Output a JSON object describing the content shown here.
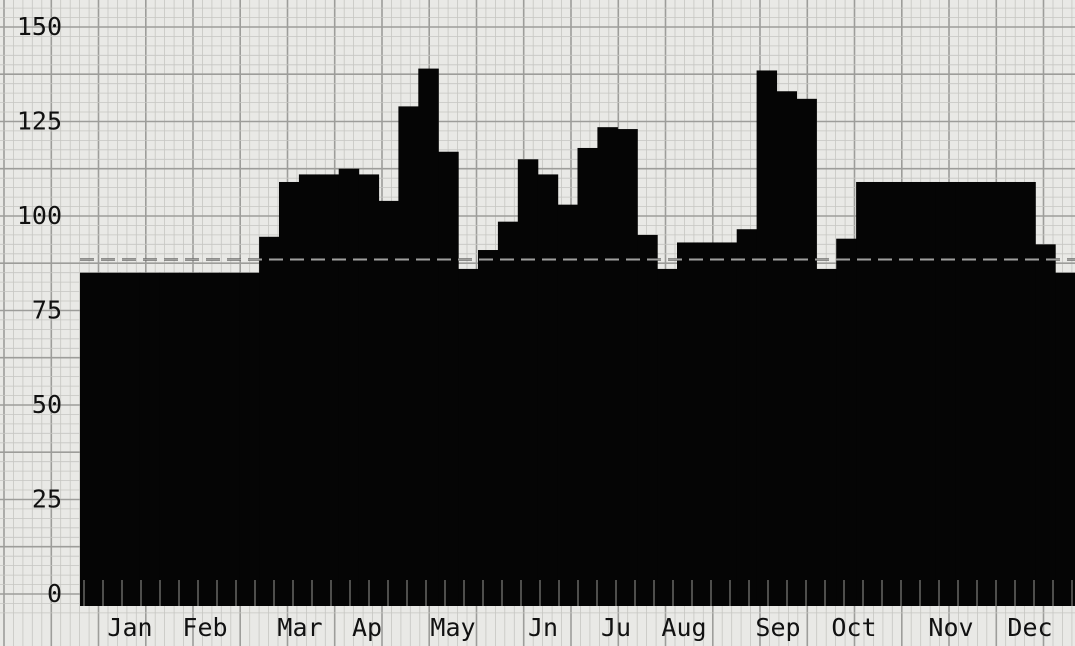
{
  "chart_data": {
    "type": "bar",
    "title": "",
    "xlabel": "",
    "ylabel": "",
    "ylim": [
      0,
      150
    ],
    "yticks": [
      0,
      25,
      50,
      75,
      100,
      125,
      150
    ],
    "ytick_labels": [
      "0",
      "25",
      "50",
      "75",
      "100",
      "125",
      "150"
    ],
    "xtick_labels": [
      "Jan",
      "Feb",
      "Mar",
      "Ap",
      "May",
      "Jn",
      "Ju",
      "Aug",
      "Sep",
      "Oct",
      "Nov",
      "Dec"
    ],
    "grid": true,
    "bar_color": "#050505",
    "reference_line": {
      "value": 88.5,
      "style": "dashed"
    },
    "values": [
      85,
      85,
      85,
      85,
      85,
      85,
      85,
      85,
      85,
      94.5,
      109,
      111,
      111,
      112.5,
      111,
      104,
      129,
      139,
      117,
      86,
      91,
      98.5,
      115,
      111,
      103,
      118,
      123.5,
      123,
      95,
      86,
      93,
      93,
      93,
      96.5,
      138.5,
      133,
      131,
      86,
      94,
      109,
      109,
      109,
      109,
      109,
      109,
      109,
      109,
      109,
      92.5,
      85
    ]
  }
}
